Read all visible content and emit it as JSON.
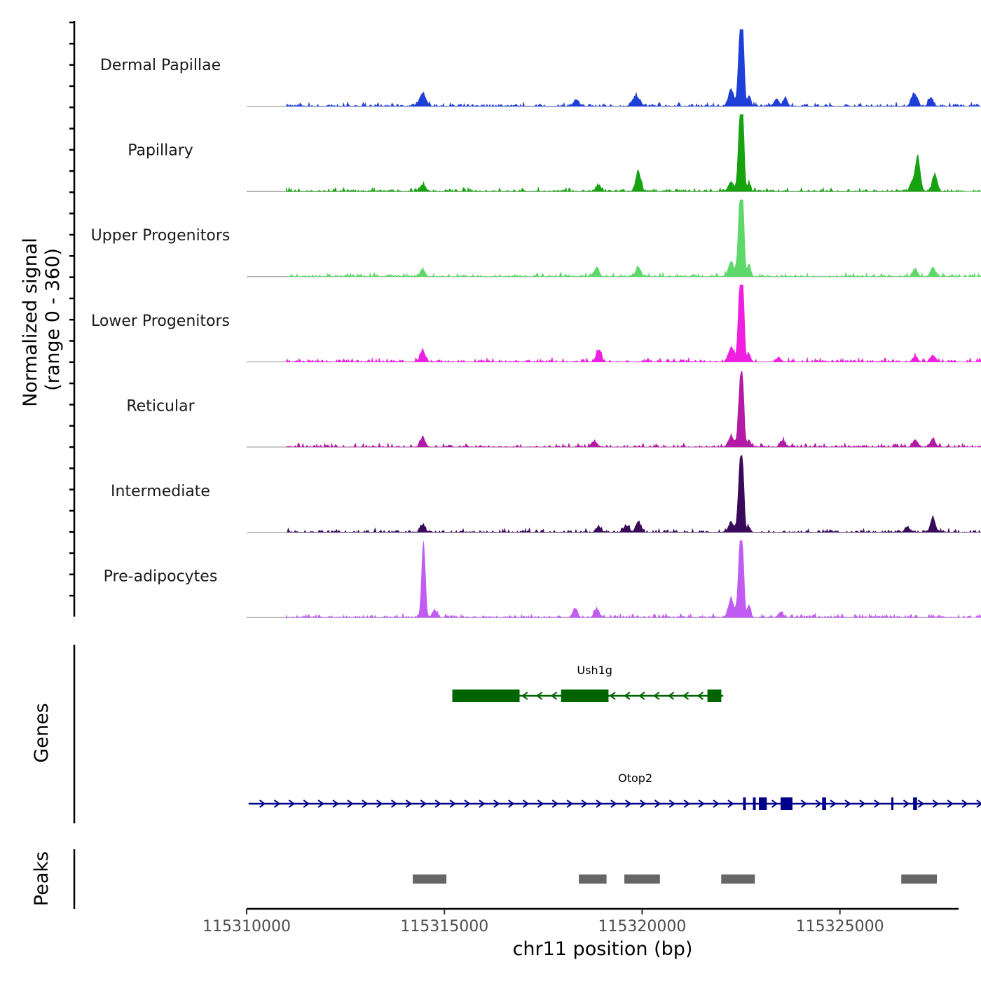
{
  "chart_data": {
    "type": "area",
    "title": "",
    "chromosome": "chr11",
    "xlabel": "chr11 position (bp)",
    "ylabel_line1": "Normalized signal",
    "ylabel_line2": "(range 0 - 360)",
    "ylim": [
      0,
      360
    ],
    "xlim": [
      115310000,
      115328000
    ],
    "x_ticks": [
      115310000,
      115315000,
      115320000,
      115325000
    ],
    "x_tick_labels": [
      "115310000",
      "115315000",
      "115320000",
      "115325000"
    ],
    "signal_region": [
      115311000,
      115329000
    ],
    "genes_track_label": "Genes",
    "peaks_track_label": "Peaks",
    "series": [
      {
        "name": "Dermal Papillae",
        "color": "#1f3fd9",
        "peaks": [
          {
            "pos": 115314450,
            "height": 60,
            "width": 80
          },
          {
            "pos": 115318320,
            "height": 25,
            "width": 70
          },
          {
            "pos": 115319850,
            "height": 45,
            "width": 90
          },
          {
            "pos": 115322250,
            "height": 75,
            "width": 70
          },
          {
            "pos": 115322470,
            "height": 300,
            "width": 45
          },
          {
            "pos": 115322540,
            "height": 330,
            "width": 40
          },
          {
            "pos": 115322700,
            "height": 50,
            "width": 40
          },
          {
            "pos": 115323400,
            "height": 35,
            "width": 60
          },
          {
            "pos": 115323620,
            "height": 40,
            "width": 50
          },
          {
            "pos": 115326880,
            "height": 60,
            "width": 70
          },
          {
            "pos": 115327300,
            "height": 35,
            "width": 60
          }
        ]
      },
      {
        "name": "Papillary",
        "color": "#16a30f",
        "peaks": [
          {
            "pos": 115314450,
            "height": 30,
            "width": 70
          },
          {
            "pos": 115318900,
            "height": 25,
            "width": 70
          },
          {
            "pos": 115319900,
            "height": 95,
            "width": 60
          },
          {
            "pos": 115322250,
            "height": 45,
            "width": 70
          },
          {
            "pos": 115322470,
            "height": 310,
            "width": 45
          },
          {
            "pos": 115322540,
            "height": 330,
            "width": 40
          },
          {
            "pos": 115322700,
            "height": 40,
            "width": 40
          },
          {
            "pos": 115326850,
            "height": 40,
            "width": 70
          },
          {
            "pos": 115326970,
            "height": 150,
            "width": 60
          },
          {
            "pos": 115327400,
            "height": 80,
            "width": 60
          }
        ]
      },
      {
        "name": "Upper Progenitors",
        "color": "#5ed86a",
        "peaks": [
          {
            "pos": 115314450,
            "height": 35,
            "width": 60
          },
          {
            "pos": 115318850,
            "height": 40,
            "width": 60
          },
          {
            "pos": 115319900,
            "height": 45,
            "width": 60
          },
          {
            "pos": 115322250,
            "height": 70,
            "width": 70
          },
          {
            "pos": 115322470,
            "height": 330,
            "width": 45
          },
          {
            "pos": 115322540,
            "height": 340,
            "width": 40
          },
          {
            "pos": 115322700,
            "height": 60,
            "width": 40
          },
          {
            "pos": 115326900,
            "height": 35,
            "width": 60
          },
          {
            "pos": 115327350,
            "height": 45,
            "width": 60
          }
        ]
      },
      {
        "name": "Lower Progenitors",
        "color": "#f01ee0",
        "peaks": [
          {
            "pos": 115314450,
            "height": 55,
            "width": 60
          },
          {
            "pos": 115318900,
            "height": 55,
            "width": 60
          },
          {
            "pos": 115322250,
            "height": 65,
            "width": 70
          },
          {
            "pos": 115322470,
            "height": 320,
            "width": 45
          },
          {
            "pos": 115322540,
            "height": 340,
            "width": 40
          },
          {
            "pos": 115322700,
            "height": 40,
            "width": 40
          },
          {
            "pos": 115323450,
            "height": 20,
            "width": 60
          },
          {
            "pos": 115326900,
            "height": 25,
            "width": 60
          },
          {
            "pos": 115327350,
            "height": 30,
            "width": 60
          }
        ]
      },
      {
        "name": "Reticular",
        "color": "#b31aa6",
        "peaks": [
          {
            "pos": 115314450,
            "height": 45,
            "width": 60
          },
          {
            "pos": 115318800,
            "height": 25,
            "width": 70
          },
          {
            "pos": 115322250,
            "height": 50,
            "width": 70
          },
          {
            "pos": 115322470,
            "height": 240,
            "width": 45
          },
          {
            "pos": 115322540,
            "height": 260,
            "width": 40
          },
          {
            "pos": 115322700,
            "height": 35,
            "width": 40
          },
          {
            "pos": 115323550,
            "height": 30,
            "width": 60
          },
          {
            "pos": 115326900,
            "height": 35,
            "width": 60
          },
          {
            "pos": 115327350,
            "height": 40,
            "width": 60
          }
        ]
      },
      {
        "name": "Intermediate",
        "color": "#3a0a5a",
        "peaks": [
          {
            "pos": 115314450,
            "height": 35,
            "width": 60
          },
          {
            "pos": 115318900,
            "height": 25,
            "width": 60
          },
          {
            "pos": 115319600,
            "height": 30,
            "width": 70
          },
          {
            "pos": 115319900,
            "height": 50,
            "width": 60
          },
          {
            "pos": 115322250,
            "height": 45,
            "width": 70
          },
          {
            "pos": 115322470,
            "height": 280,
            "width": 45
          },
          {
            "pos": 115322540,
            "height": 260,
            "width": 40
          },
          {
            "pos": 115322700,
            "height": 25,
            "width": 40
          },
          {
            "pos": 115326700,
            "height": 25,
            "width": 60
          },
          {
            "pos": 115327350,
            "height": 70,
            "width": 60
          }
        ]
      },
      {
        "name": "Pre-adipocytes",
        "color": "#c05cf2",
        "peaks": [
          {
            "pos": 115314470,
            "height": 355,
            "width": 45
          },
          {
            "pos": 115314750,
            "height": 35,
            "width": 50
          },
          {
            "pos": 115318300,
            "height": 40,
            "width": 60
          },
          {
            "pos": 115318850,
            "height": 40,
            "width": 60
          },
          {
            "pos": 115322250,
            "height": 85,
            "width": 70
          },
          {
            "pos": 115322470,
            "height": 300,
            "width": 45
          },
          {
            "pos": 115322540,
            "height": 260,
            "width": 40
          },
          {
            "pos": 115322700,
            "height": 60,
            "width": 40
          },
          {
            "pos": 115323500,
            "height": 25,
            "width": 60
          }
        ]
      }
    ],
    "genes": [
      {
        "name": "Ush1g",
        "color": "#006400",
        "strand": "-",
        "start": 115315200,
        "end": 115322050,
        "exons": [
          [
            115315200,
            115316900
          ],
          [
            115317950,
            115319150
          ],
          [
            115321650,
            115322000
          ]
        ]
      },
      {
        "name": "Otop2",
        "color": "#00008b",
        "strand": "+",
        "start": 115310050,
        "end": 115329050,
        "exons": [
          [
            115322550,
            115322620
          ],
          [
            115322800,
            115322870
          ],
          [
            115322950,
            115323150
          ],
          [
            115323500,
            115323800
          ],
          [
            115324550,
            115324650
          ],
          [
            115326300,
            115326350
          ],
          [
            115326850,
            115326950
          ]
        ]
      }
    ],
    "peaks": [
      [
        115314200,
        115315050
      ],
      [
        115318400,
        115319100
      ],
      [
        115319550,
        115320450
      ],
      [
        115322000,
        115322850
      ],
      [
        115326550,
        115327450
      ]
    ]
  }
}
